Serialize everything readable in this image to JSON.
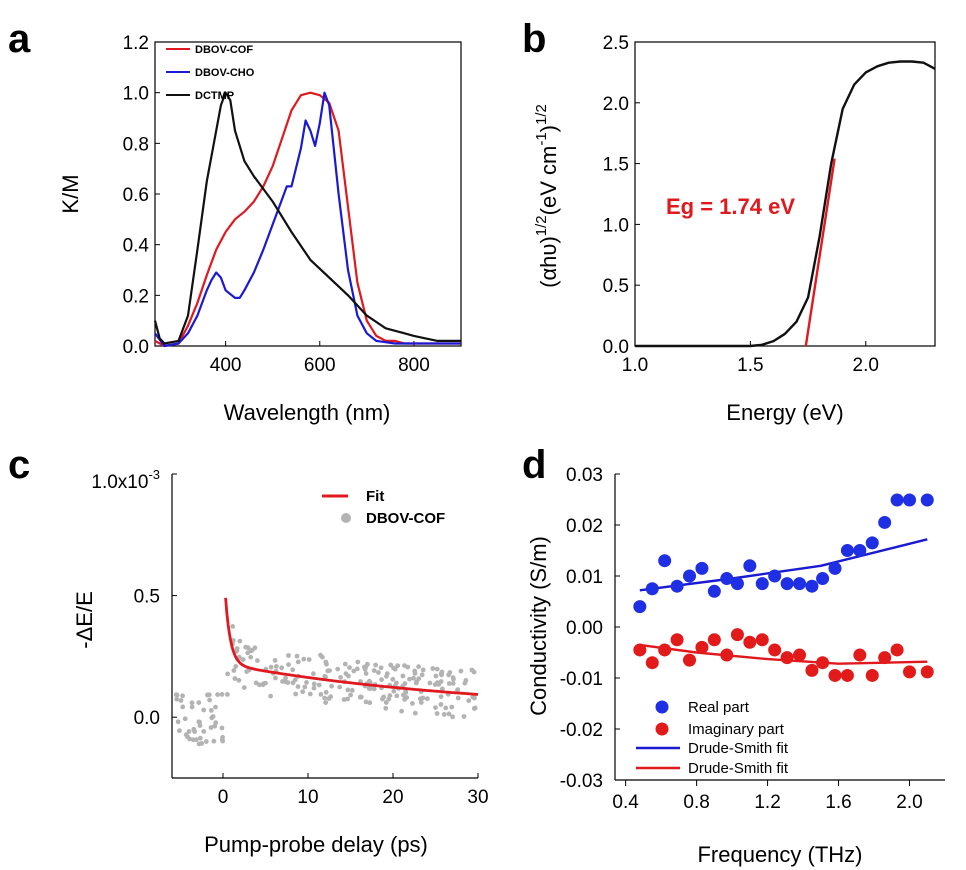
{
  "colors": {
    "red": "#e0191f",
    "blue": "#1a1ad2",
    "black": "#111111",
    "gray": "#b3b3b3",
    "bluePoint": "#1f2fe3",
    "redPoint": "#e21a1a"
  },
  "chart_data": [
    {
      "panel": "a",
      "type": "line",
      "xlabel": "Wavelength (nm)",
      "ylabel": "K/M",
      "xlim": [
        250,
        900
      ],
      "ylim": [
        0,
        1.2
      ],
      "xticks": [
        "400",
        "600",
        "800"
      ],
      "yticks": [
        "0.0",
        "0.2",
        "0.4",
        "0.6",
        "0.8",
        "1.0",
        "1.2"
      ],
      "legend_position": "top-left",
      "series": [
        {
          "name": "DBOV-COF",
          "color": "red",
          "x": [
            250,
            270,
            300,
            320,
            340,
            360,
            380,
            400,
            420,
            440,
            460,
            480,
            500,
            520,
            540,
            560,
            580,
            600,
            620,
            640,
            660,
            680,
            700,
            720,
            740,
            760,
            780,
            800,
            850,
            900
          ],
          "y": [
            0.02,
            0.0,
            0.01,
            0.08,
            0.17,
            0.28,
            0.38,
            0.45,
            0.5,
            0.53,
            0.57,
            0.63,
            0.71,
            0.82,
            0.93,
            0.99,
            1.0,
            0.99,
            0.96,
            0.85,
            0.55,
            0.25,
            0.1,
            0.04,
            0.02,
            0.02,
            0.01,
            0.01,
            0.01,
            0.01
          ]
        },
        {
          "name": "DBOV-CHO",
          "color": "blue",
          "x": [
            250,
            270,
            300,
            320,
            340,
            360,
            370,
            380,
            390,
            400,
            420,
            430,
            440,
            460,
            480,
            500,
            520,
            530,
            540,
            560,
            570,
            580,
            590,
            600,
            610,
            620,
            640,
            660,
            680,
            700,
            720,
            760,
            800,
            850,
            900
          ],
          "y": [
            0.05,
            0.0,
            0.01,
            0.05,
            0.12,
            0.22,
            0.26,
            0.29,
            0.27,
            0.22,
            0.19,
            0.19,
            0.22,
            0.29,
            0.38,
            0.48,
            0.58,
            0.63,
            0.63,
            0.78,
            0.89,
            0.85,
            0.79,
            0.88,
            1.0,
            0.95,
            0.6,
            0.3,
            0.12,
            0.05,
            0.02,
            0.01,
            0.01,
            0.01,
            0.01
          ]
        },
        {
          "name": "DCTMP",
          "color": "black",
          "x": [
            250,
            260,
            270,
            300,
            320,
            340,
            360,
            380,
            390,
            400,
            410,
            420,
            440,
            460,
            480,
            500,
            540,
            580,
            620,
            660,
            700,
            740,
            760,
            780,
            800,
            850,
            900
          ],
          "y": [
            0.1,
            0.03,
            0.01,
            0.02,
            0.12,
            0.38,
            0.65,
            0.85,
            0.95,
            1.0,
            0.97,
            0.85,
            0.73,
            0.67,
            0.62,
            0.57,
            0.45,
            0.34,
            0.27,
            0.2,
            0.12,
            0.07,
            0.06,
            0.05,
            0.04,
            0.02,
            0.02
          ]
        }
      ]
    },
    {
      "panel": "b",
      "type": "line",
      "xlabel": "Energy (eV)",
      "ylabel_parts": {
        "a": "(αhυ)",
        "b": "1/2",
        "c": "(eV cm",
        "d": "-1",
        "e": ")",
        "f": "1/2"
      },
      "xlim": [
        1.0,
        2.3
      ],
      "ylim": [
        0,
        2.5
      ],
      "xticks": [
        "1.0",
        "1.5",
        "2.0"
      ],
      "yticks": [
        "0.0",
        "0.5",
        "1.0",
        "1.5",
        "2.0",
        "2.5"
      ],
      "annotation": "Eg = 1.74 eV",
      "series": [
        {
          "color": "black",
          "x": [
            1.0,
            1.2,
            1.4,
            1.5,
            1.55,
            1.6,
            1.65,
            1.7,
            1.75,
            1.8,
            1.85,
            1.9,
            1.95,
            2.0,
            2.05,
            2.1,
            2.15,
            2.2,
            2.25,
            2.3
          ],
          "y": [
            0.0,
            0.0,
            0.0,
            0.0,
            0.01,
            0.04,
            0.1,
            0.2,
            0.4,
            0.9,
            1.5,
            1.95,
            2.15,
            2.25,
            2.3,
            2.33,
            2.34,
            2.34,
            2.33,
            2.28
          ]
        },
        {
          "color": "red",
          "x": [
            1.74,
            1.865
          ],
          "y": [
            0.0,
            1.54
          ]
        }
      ]
    },
    {
      "panel": "c",
      "type": "scatter",
      "xlabel": "Pump-probe delay (ps)",
      "ylabel": "-ΔE/E",
      "xlim": [
        -6,
        30
      ],
      "ylim": [
        -0.25,
        1.0
      ],
      "y_multiplier": "1.0x10",
      "y_multiplier_exp": "-3",
      "xticks": [
        "0",
        "10",
        "20",
        "30"
      ],
      "yticks": [
        "0.0",
        "0.5"
      ],
      "legend_position": "top-right",
      "series": [
        {
          "name": "Fit",
          "color": "red",
          "kind": "line",
          "model": "0.02 + 0.45*exp(-t/0.6) + 0.2*exp(-t/30)",
          "x_range": [
            0.3,
            30
          ]
        },
        {
          "name": "DBOV-COF",
          "color": "gray",
          "kind": "points",
          "count": 260
        }
      ]
    },
    {
      "panel": "d",
      "type": "scatter",
      "xlabel": "Frequency (THz)",
      "ylabel": "Conductivity (S/m)",
      "xlim": [
        0.34,
        2.2
      ],
      "ylim": [
        -0.03,
        0.03
      ],
      "xticks": [
        "0.4",
        "0.8",
        "1.2",
        "1.6",
        "2.0"
      ],
      "yticks": [
        "-0.03",
        "-0.02",
        "-0.01",
        "0.00",
        "0.01",
        "0.02",
        "0.03"
      ],
      "legend_position": "bottom-left",
      "series": [
        {
          "name": "Real part",
          "color": "bluePoint",
          "kind": "points",
          "x": [
            0.48,
            0.55,
            0.62,
            0.69,
            0.76,
            0.83,
            0.9,
            0.97,
            1.03,
            1.1,
            1.17,
            1.24,
            1.31,
            1.38,
            1.45,
            1.51,
            1.58,
            1.65,
            1.72,
            1.79,
            1.86,
            1.93,
            2.0,
            2.1
          ],
          "y": [
            0.004,
            0.0075,
            0.013,
            0.008,
            0.01,
            0.0115,
            0.007,
            0.0095,
            0.0085,
            0.012,
            0.0085,
            0.01,
            0.0085,
            0.0085,
            0.008,
            0.0095,
            0.0115,
            0.015,
            0.015,
            0.0165,
            0.0205,
            0.0249,
            0.0249,
            0.0249
          ]
        },
        {
          "name": "Imaginary part",
          "color": "redPoint",
          "kind": "points",
          "x": [
            0.48,
            0.55,
            0.62,
            0.69,
            0.76,
            0.83,
            0.9,
            0.97,
            1.03,
            1.1,
            1.17,
            1.24,
            1.31,
            1.38,
            1.45,
            1.51,
            1.58,
            1.65,
            1.72,
            1.79,
            1.86,
            1.93,
            2.0,
            2.1
          ],
          "y": [
            -0.0045,
            -0.007,
            -0.0045,
            -0.0025,
            -0.0065,
            -0.004,
            -0.0025,
            -0.0055,
            -0.0015,
            -0.003,
            -0.0025,
            -0.0045,
            -0.006,
            -0.0055,
            -0.0085,
            -0.007,
            -0.0095,
            -0.0095,
            -0.0055,
            -0.0095,
            -0.006,
            -0.0045,
            -0.0088,
            -0.0088
          ]
        },
        {
          "name": "Drude-Smith fit",
          "color": "blue",
          "kind": "line",
          "x": [
            0.48,
            1.0,
            1.5,
            2.1
          ],
          "y": [
            0.0072,
            0.0095,
            0.012,
            0.0172
          ]
        },
        {
          "name": "Drude-Smith fit",
          "color": "red",
          "kind": "line",
          "x": [
            0.48,
            0.8,
            1.2,
            1.6,
            2.1
          ],
          "y": [
            -0.0035,
            -0.005,
            -0.0063,
            -0.0072,
            -0.0068
          ]
        }
      ]
    }
  ]
}
